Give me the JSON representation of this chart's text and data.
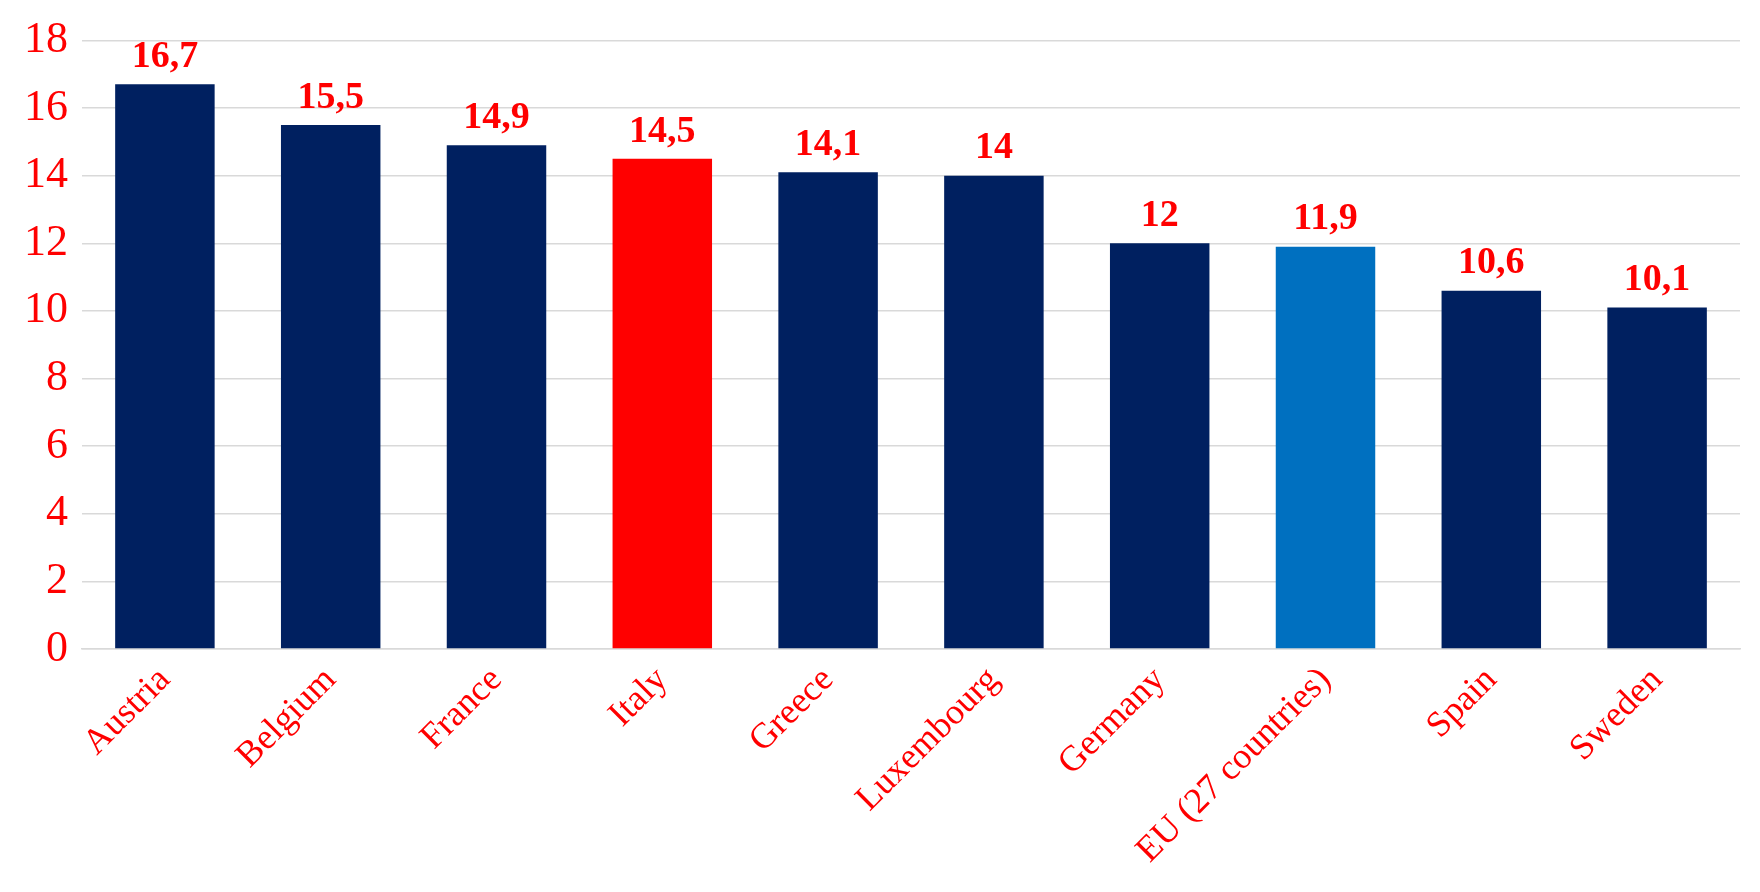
{
  "chart_data": {
    "type": "bar",
    "categories": [
      "Austria",
      "Belgium",
      "France",
      "Italy",
      "Greece",
      "Luxembourg",
      "Germany",
      "EU (27 countries)",
      "Spain",
      "Sweden"
    ],
    "values": [
      16.7,
      15.5,
      14.9,
      14.5,
      14.1,
      14,
      12,
      11.9,
      10.6,
      10.1
    ],
    "colors": [
      "#002060",
      "#002060",
      "#002060",
      "#ff0000",
      "#002060",
      "#002060",
      "#002060",
      "#0070c0",
      "#002060",
      "#002060"
    ],
    "value_labels": [
      "16,7",
      "15,5",
      "14,9",
      "14,5",
      "14,1",
      "14",
      "12",
      "11,9",
      "10,6",
      "10,1"
    ],
    "ylim": [
      0,
      18
    ],
    "yticks": [
      0,
      2,
      4,
      6,
      8,
      10,
      12,
      14,
      16,
      18
    ],
    "grid": "y",
    "legend": false
  }
}
